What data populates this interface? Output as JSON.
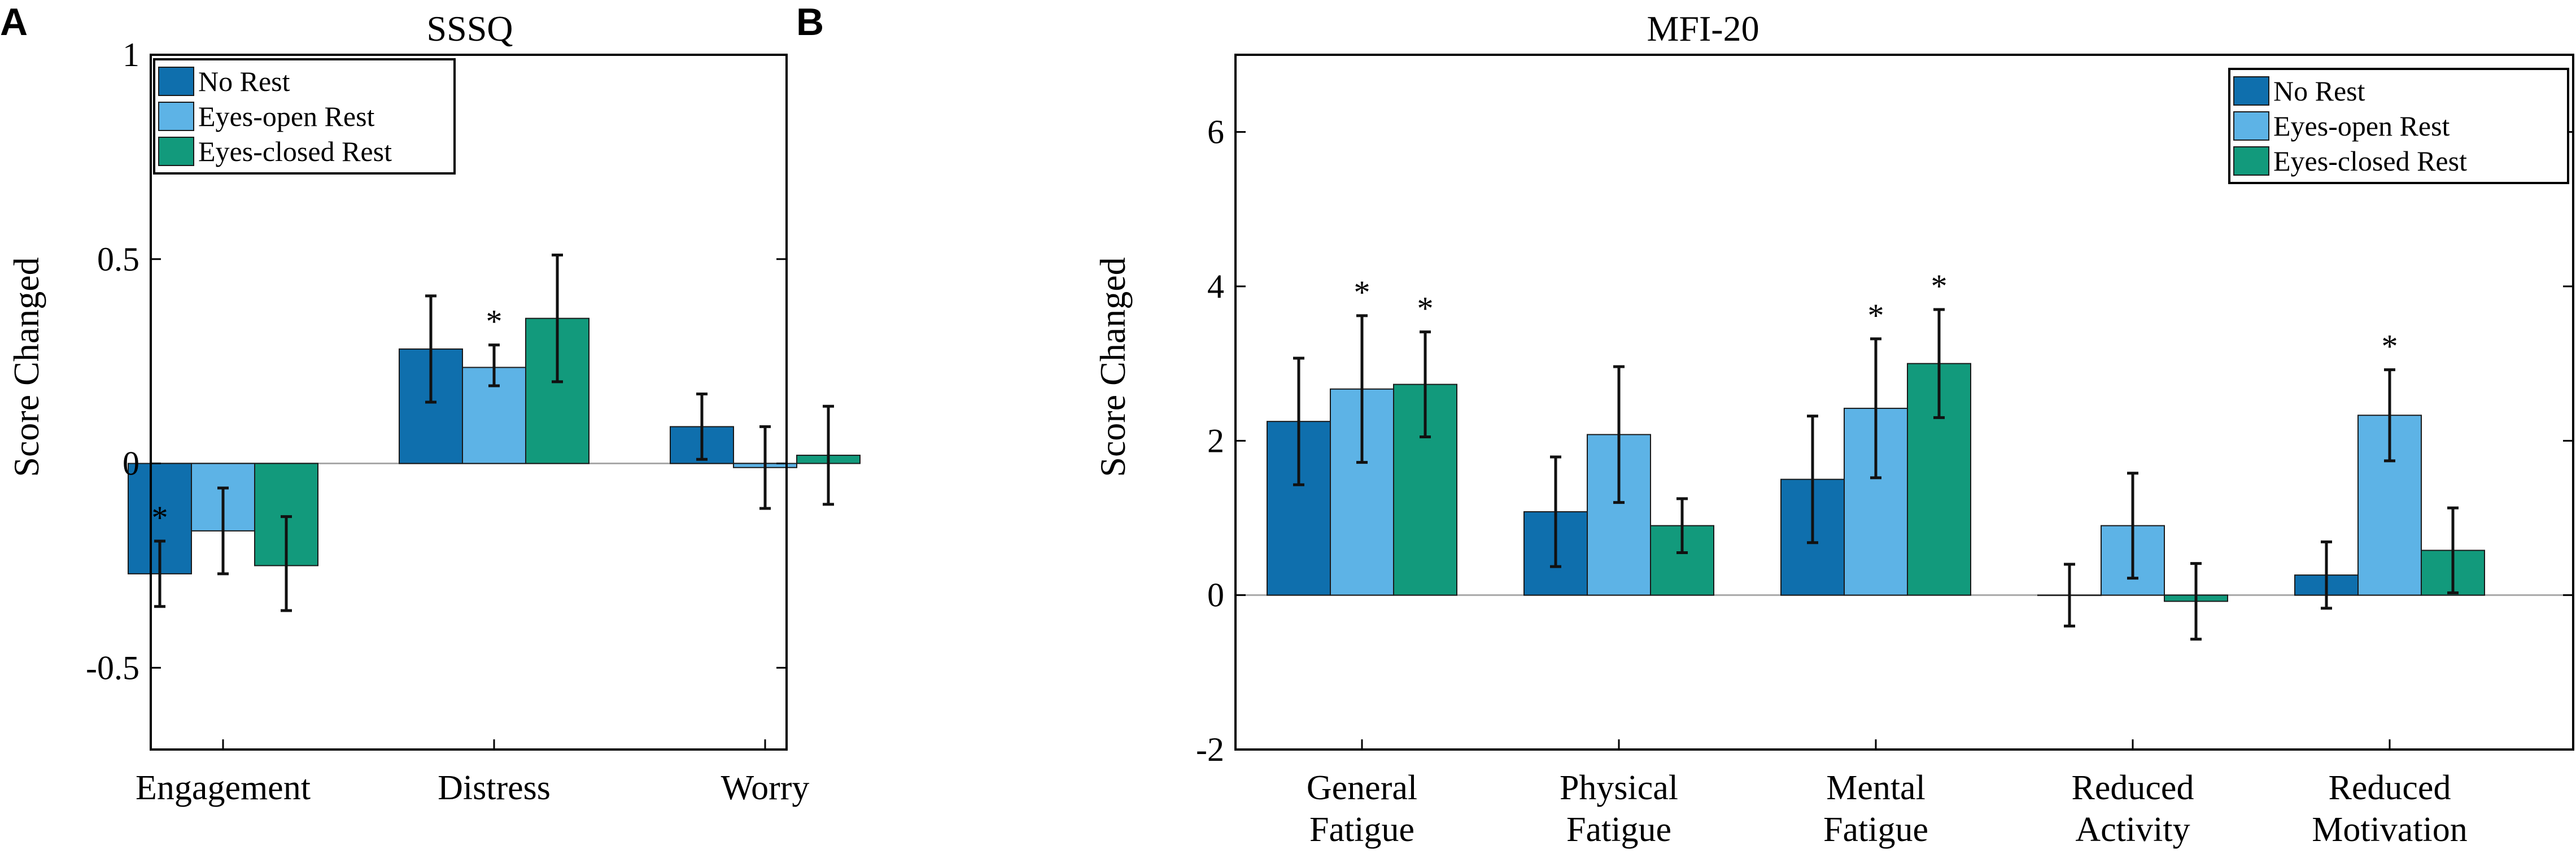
{
  "colors": {
    "no_rest": "#0f6fad",
    "eyes_open": "#5db3e6",
    "eyes_closed": "#129a7c",
    "axis": "#000000",
    "zero_line": "#a8a8a8",
    "error_bar": "#111111"
  },
  "chart_data": [
    {
      "panel_label": "A",
      "type": "bar",
      "title": "SSSQ",
      "ylabel": "Score Changed",
      "xlabel": "",
      "ylim": [
        -0.7,
        1
      ],
      "yticks": [
        -0.5,
        0,
        0.5,
        1
      ],
      "ytick_labels": [
        "-0.5",
        "0",
        "0.5",
        "1"
      ],
      "legend_position": "top-left",
      "categories": [
        [
          "Engagement"
        ],
        [
          "Distress"
        ],
        [
          "Worry"
        ]
      ],
      "series": [
        {
          "name": "No Rest",
          "color_key": "no_rest",
          "values": [
            -0.27,
            0.28,
            0.09
          ],
          "err_low": [
            -0.35,
            0.15,
            0.01
          ],
          "err_high": [
            -0.19,
            0.41,
            0.17
          ],
          "sig": [
            "*",
            "",
            ""
          ]
        },
        {
          "name": "Eyes-open Rest",
          "color_key": "eyes_open",
          "values": [
            -0.165,
            0.235,
            -0.01
          ],
          "err_low": [
            -0.27,
            0.19,
            -0.11
          ],
          "err_high": [
            -0.06,
            0.29,
            0.09
          ],
          "sig": [
            "",
            "*",
            ""
          ]
        },
        {
          "name": "Eyes-closed Rest",
          "color_key": "eyes_closed",
          "values": [
            -0.25,
            0.355,
            0.02
          ],
          "err_low": [
            -0.36,
            0.2,
            -0.1
          ],
          "err_high": [
            -0.13,
            0.51,
            0.14
          ],
          "sig": [
            "",
            "",
            ""
          ]
        }
      ]
    },
    {
      "panel_label": "B",
      "type": "bar",
      "title": "MFI-20",
      "ylabel": "Score Changed",
      "xlabel": "",
      "ylim": [
        -2,
        7
      ],
      "yticks": [
        -2,
        0,
        2,
        4,
        6
      ],
      "ytick_labels": [
        "-2",
        "0",
        "2",
        "4",
        "6"
      ],
      "legend_position": "top-right",
      "categories": [
        [
          "General",
          "Fatigue"
        ],
        [
          "Physical",
          "Fatigue"
        ],
        [
          "Mental",
          "Fatigue"
        ],
        [
          "Reduced",
          "Activity"
        ],
        [
          "Reduced",
          "Motivation"
        ]
      ],
      "series": [
        {
          "name": "No Rest",
          "color_key": "no_rest",
          "values": [
            2.25,
            1.08,
            1.5,
            0.0,
            0.26
          ],
          "err_low": [
            1.43,
            0.37,
            0.68,
            -0.4,
            -0.17
          ],
          "err_high": [
            3.07,
            1.79,
            2.32,
            0.4,
            0.69
          ],
          "sig": [
            "",
            "",
            "",
            "",
            ""
          ]
        },
        {
          "name": "Eyes-open Rest",
          "color_key": "eyes_open",
          "values": [
            2.67,
            2.08,
            2.42,
            0.9,
            2.33
          ],
          "err_low": [
            1.72,
            1.2,
            1.52,
            0.22,
            1.74
          ],
          "err_high": [
            3.62,
            2.96,
            3.32,
            1.58,
            2.92
          ],
          "sig": [
            "*",
            "",
            "*",
            "",
            "*"
          ]
        },
        {
          "name": "Eyes-closed Rest",
          "color_key": "eyes_closed",
          "values": [
            2.73,
            0.9,
            3.0,
            -0.08,
            0.58
          ],
          "err_low": [
            2.05,
            0.55,
            2.3,
            -0.57,
            0.03
          ],
          "err_high": [
            3.41,
            1.25,
            3.7,
            0.41,
            1.13
          ],
          "sig": [
            "*",
            "",
            "*",
            "",
            ""
          ]
        }
      ]
    }
  ]
}
